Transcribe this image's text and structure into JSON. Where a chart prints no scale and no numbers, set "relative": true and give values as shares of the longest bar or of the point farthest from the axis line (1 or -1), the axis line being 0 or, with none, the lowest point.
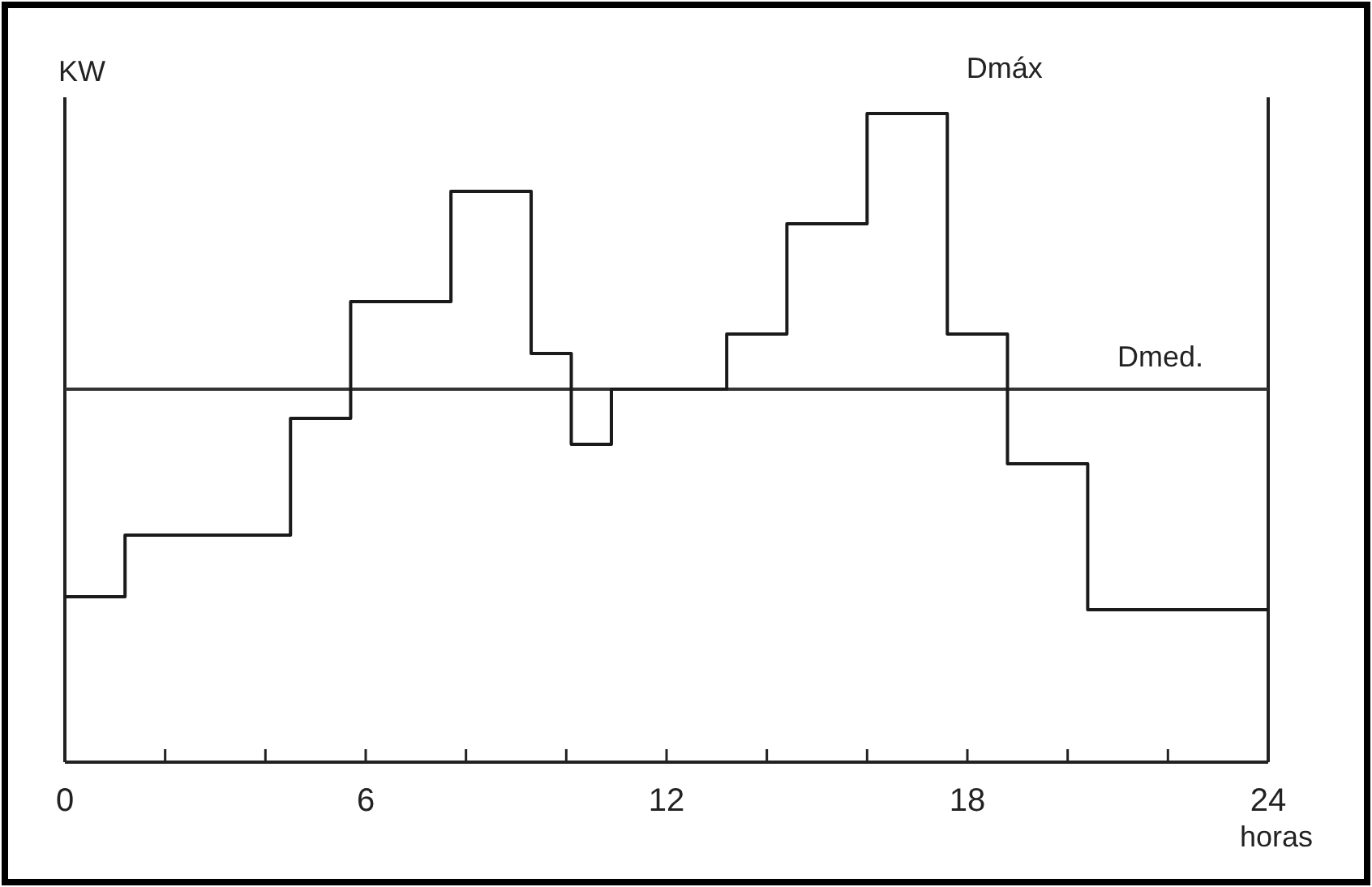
{
  "chart_data": {
    "type": "step",
    "relative": true,
    "xlabel": "horas",
    "ylabel": "KW",
    "x": [
      0,
      1.2,
      4.5,
      5.7,
      7.7,
      9.3,
      10.1,
      10.9,
      13.2,
      14.4,
      16.0,
      17.6,
      18.8,
      20.4,
      24
    ],
    "values": [
      0.255,
      0.35,
      0.53,
      0.71,
      0.88,
      0.63,
      0.49,
      0.575,
      0.66,
      0.83,
      1,
      0.66,
      0.46,
      0.235,
      0.235
    ],
    "color": "#1a1a1a",
    "xlim": [
      0,
      24
    ],
    "xticks": [
      0,
      {
        "value": 2,
        "label": null
      },
      {
        "value": 4,
        "label": null
      },
      6,
      {
        "value": 8,
        "label": null
      },
      {
        "value": 10,
        "label": null
      },
      12,
      {
        "value": 14,
        "label": null
      },
      {
        "value": 16,
        "label": null
      },
      18,
      {
        "value": 20,
        "label": null
      },
      {
        "value": 22,
        "label": null
      },
      24
    ],
    "ref_lines": [
      {
        "axis": "y",
        "value": 0.575,
        "label": "Dmed."
      }
    ],
    "annotations": [
      {
        "text": "Dmáx",
        "x": 16.8,
        "y": 1
      }
    ],
    "line_style": "solid"
  }
}
